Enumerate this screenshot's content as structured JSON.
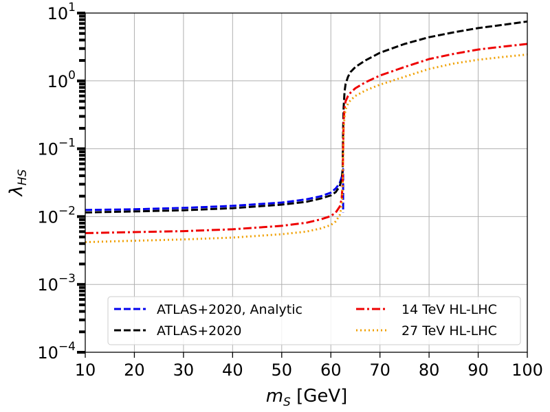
{
  "chart_data": {
    "type": "line",
    "xlabel": {
      "main": "m",
      "sub": "S",
      "unit": " [GeV]"
    },
    "ylabel": {
      "main": "λ",
      "sub": "HS"
    },
    "xlim": [
      10,
      100
    ],
    "ylim": [
      0.0001,
      10
    ],
    "y_scale": "log",
    "grid": true,
    "legend_placement": "lower-center",
    "x_ticks": [
      10,
      20,
      30,
      40,
      50,
      60,
      70,
      80,
      90,
      100
    ],
    "x_tick_labels": [
      "10",
      "20",
      "30",
      "40",
      "50",
      "60",
      "70",
      "80",
      "90",
      "100"
    ],
    "y_ticks": [
      0.0001,
      0.001,
      0.01,
      0.1,
      1,
      10
    ],
    "y_tick_labels": [
      {
        "base": "10",
        "exp": "−4"
      },
      {
        "base": "10",
        "exp": "−3"
      },
      {
        "base": "10",
        "exp": "−2"
      },
      {
        "base": "10",
        "exp": "−1"
      },
      {
        "base": "10",
        "exp": "0"
      },
      {
        "base": "10",
        "exp": "1"
      }
    ],
    "series": [
      {
        "name": "ATLAS+2020, Analytic",
        "color": "#0000ee",
        "dash": "dashed",
        "x": [
          10,
          20,
          30,
          40,
          50,
          55,
          58,
          60,
          61,
          61.8,
          62.3,
          62.5,
          62.5
        ],
        "y": [
          0.0125,
          0.0128,
          0.0134,
          0.0144,
          0.0161,
          0.0179,
          0.02,
          0.0225,
          0.026,
          0.031,
          0.04,
          0.05,
          0.0115
        ]
      },
      {
        "name": "ATLAS+2020",
        "color": "#000000",
        "dash": "dashed",
        "x": [
          10,
          20,
          30,
          40,
          50,
          55,
          58,
          60,
          61,
          61.8,
          62.2,
          62.4,
          62.5,
          62.6,
          62.8,
          63,
          63.5,
          64,
          65,
          67,
          70,
          75,
          80,
          85,
          90,
          95,
          100
        ],
        "y": [
          0.0115,
          0.0119,
          0.0124,
          0.0133,
          0.015,
          0.0165,
          0.0185,
          0.0205,
          0.023,
          0.028,
          0.035,
          0.05,
          0.2,
          0.4,
          0.7,
          0.9,
          1.15,
          1.35,
          1.6,
          2.0,
          2.6,
          3.5,
          4.4,
          5.2,
          6.0,
          6.7,
          7.5
        ]
      },
      {
        "name": "14 TeV HL-LHC",
        "color": "#ee0000",
        "dash": "dashdot",
        "x": [
          10,
          20,
          30,
          40,
          50,
          55,
          58,
          60,
          61,
          61.8,
          62.2,
          62.4,
          62.5,
          62.6,
          62.8,
          63,
          63.5,
          64,
          65,
          67,
          70,
          75,
          80,
          85,
          90,
          95,
          100
        ],
        "y": [
          0.0057,
          0.0059,
          0.0061,
          0.0065,
          0.0073,
          0.0081,
          0.0091,
          0.0102,
          0.0115,
          0.014,
          0.018,
          0.03,
          0.1,
          0.25,
          0.4,
          0.5,
          0.6,
          0.67,
          0.78,
          0.95,
          1.2,
          1.6,
          2.1,
          2.5,
          2.9,
          3.2,
          3.5
        ]
      },
      {
        "name": "27 TeV HL-LHC",
        "color": "#f0a000",
        "dash": "dotted",
        "x": [
          10,
          20,
          30,
          40,
          50,
          55,
          58,
          60,
          61,
          61.8,
          62.2,
          62.4,
          62.5,
          62.6,
          62.8,
          63,
          63.5,
          64,
          65,
          67,
          70,
          75,
          80,
          85,
          90,
          95,
          100
        ],
        "y": [
          0.0042,
          0.0044,
          0.0046,
          0.0049,
          0.0055,
          0.006,
          0.0067,
          0.0075,
          0.0085,
          0.0105,
          0.014,
          0.025,
          0.08,
          0.2,
          0.3,
          0.38,
          0.46,
          0.52,
          0.6,
          0.72,
          0.88,
          1.15,
          1.5,
          1.8,
          2.05,
          2.25,
          2.45
        ]
      }
    ]
  }
}
